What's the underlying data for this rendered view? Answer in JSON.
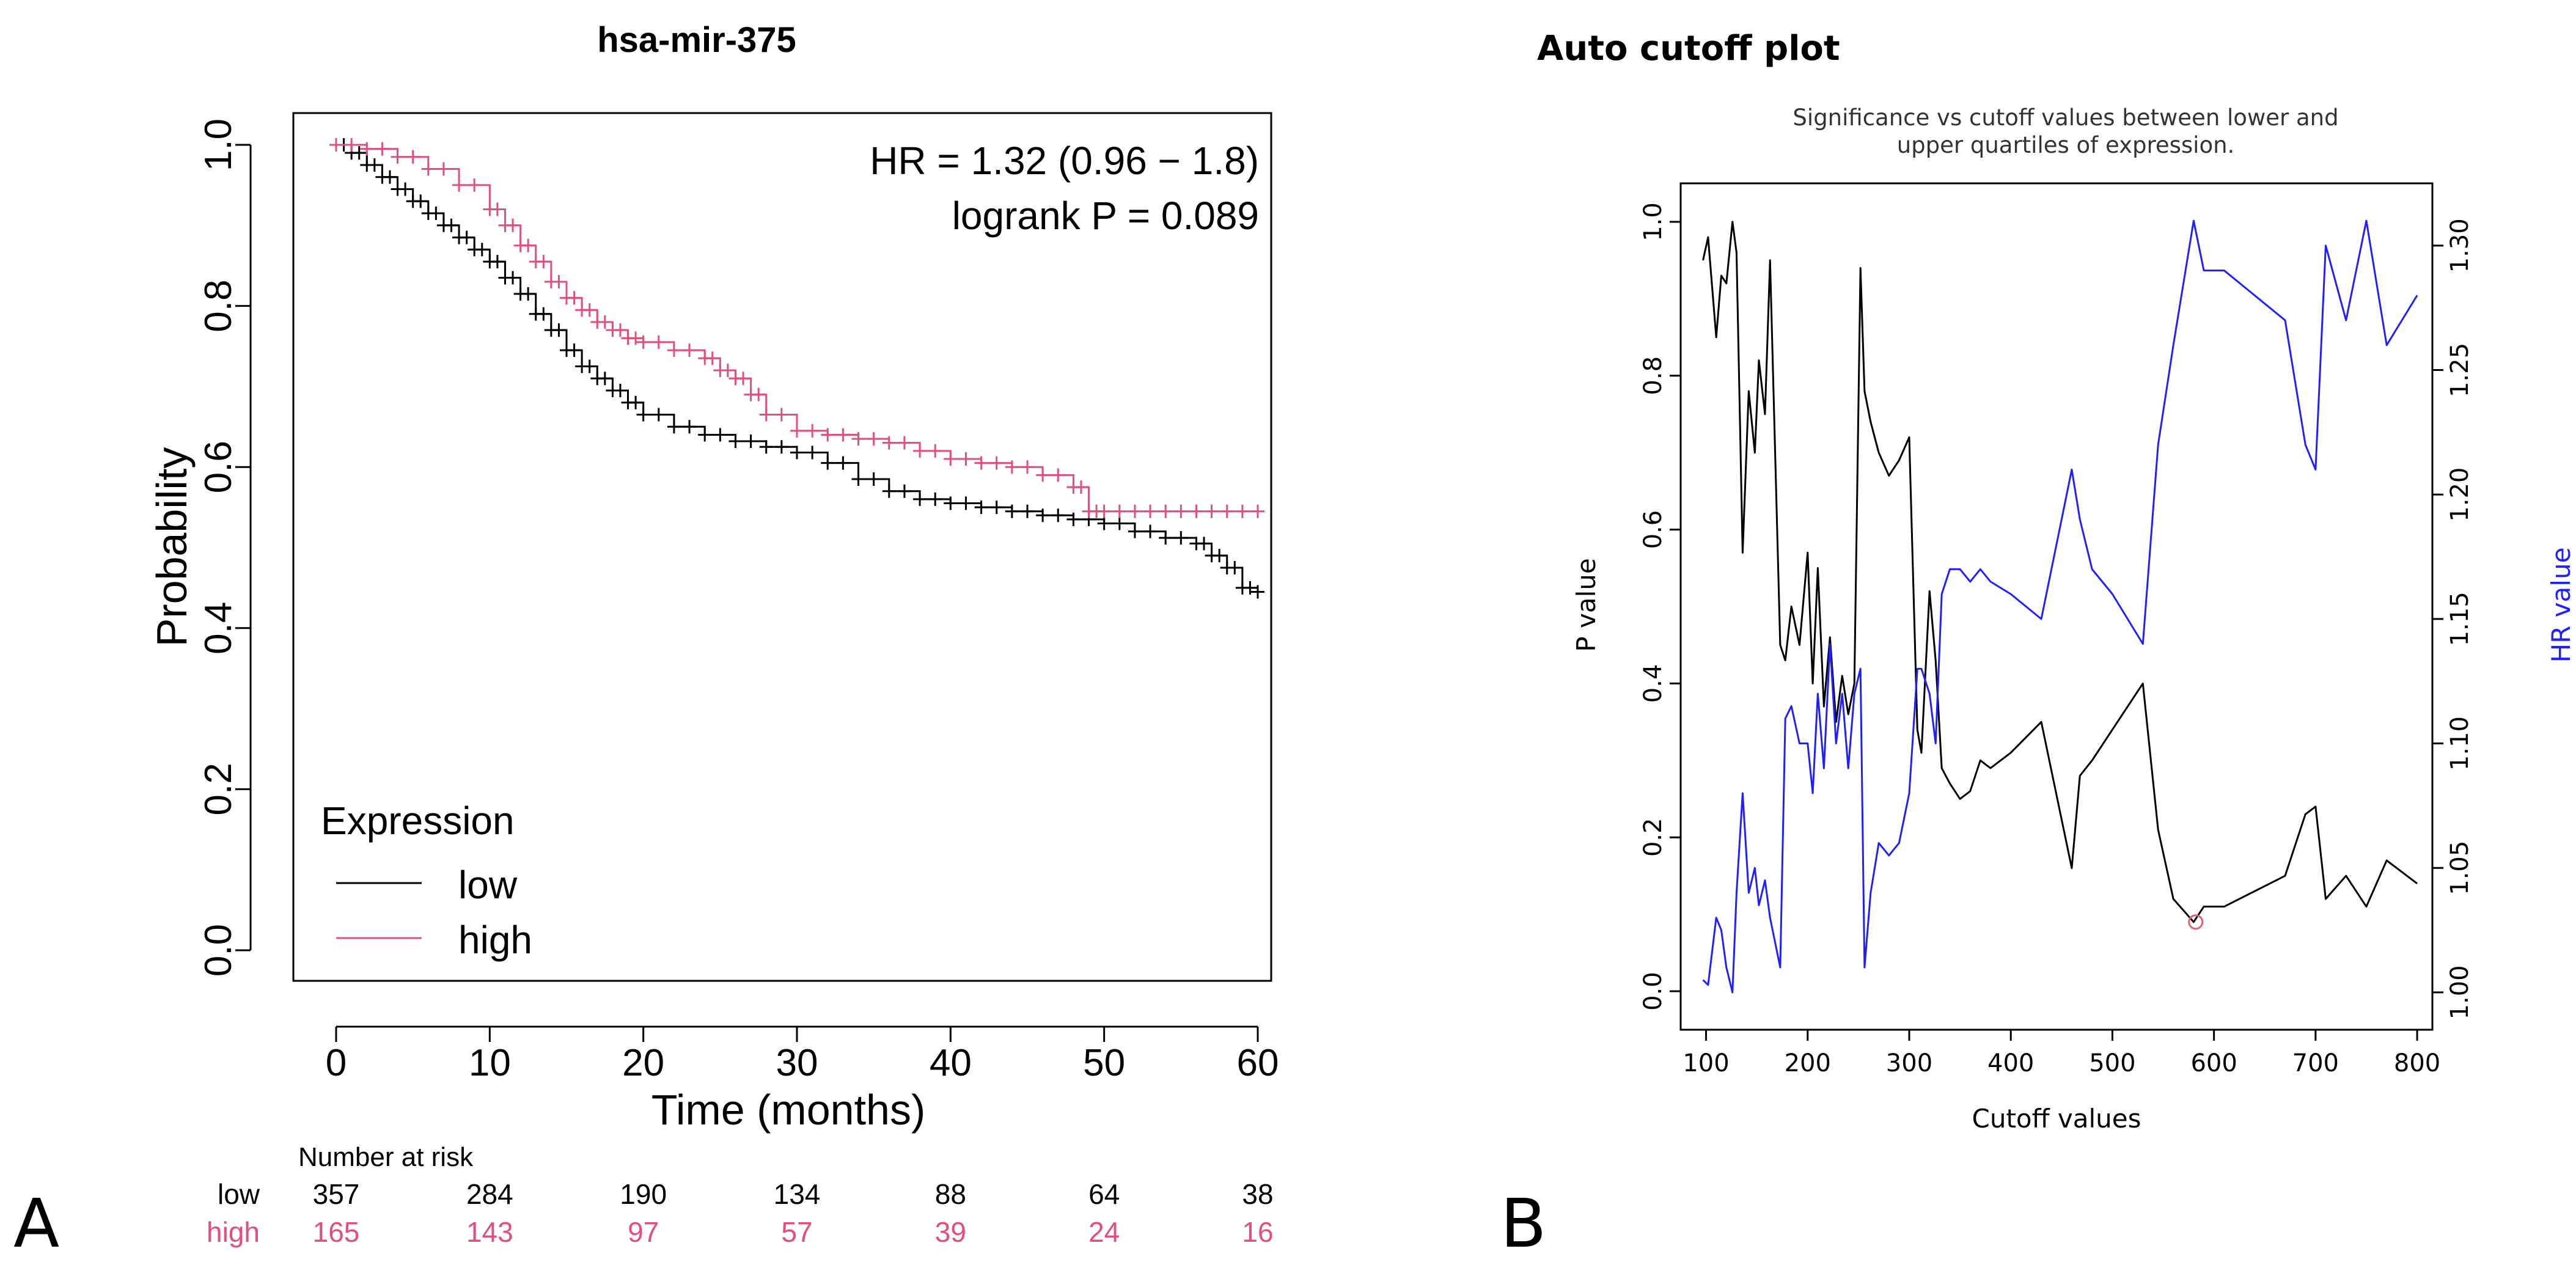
{
  "panel_labels": {
    "a": "A",
    "b": "B"
  },
  "colors": {
    "low": "#000000",
    "high": "#e0507a",
    "hr": "#2020ff",
    "opt": "#e06070"
  },
  "risk_table": {
    "title": "Number at risk",
    "rows": [
      {
        "label": "low",
        "values": [
          "357",
          "284",
          "190",
          "134",
          "88",
          "64",
          "38"
        ]
      },
      {
        "label": "high",
        "values": [
          "165",
          "143",
          "97",
          "57",
          "39",
          "24",
          "16"
        ]
      }
    ]
  },
  "chart_data": [
    {
      "type": "line",
      "subtype": "kaplan-meier",
      "title": "hsa-mir-375",
      "xlabel": "Time (months)",
      "ylabel": "Probability",
      "xlim": [
        0,
        60
      ],
      "ylim": [
        0,
        1
      ],
      "xticks": [
        0,
        10,
        20,
        30,
        40,
        50,
        60
      ],
      "yticks": [
        0.0,
        0.2,
        0.4,
        0.6,
        0.8,
        1.0
      ],
      "legend_title": "Expression",
      "legend_position": "bottom-left",
      "annotations": [
        "HR = 1.32 (0.96 − 1.8)",
        "logrank P = 0.089"
      ],
      "series": [
        {
          "name": "low",
          "color": "#000000",
          "x": [
            0,
            1,
            2,
            3,
            4,
            5,
            6,
            7,
            8,
            9,
            10,
            11,
            12,
            13,
            14,
            15,
            16,
            17,
            18,
            19,
            20,
            22,
            24,
            26,
            28,
            30,
            32,
            34,
            36,
            38,
            40,
            42,
            44,
            46,
            48,
            50,
            52,
            54,
            56,
            57,
            58,
            59,
            60
          ],
          "y": [
            1.0,
            0.99,
            0.975,
            0.96,
            0.945,
            0.93,
            0.915,
            0.9,
            0.885,
            0.87,
            0.855,
            0.835,
            0.815,
            0.79,
            0.77,
            0.745,
            0.725,
            0.71,
            0.695,
            0.68,
            0.665,
            0.65,
            0.64,
            0.632,
            0.625,
            0.618,
            0.605,
            0.585,
            0.57,
            0.56,
            0.555,
            0.55,
            0.545,
            0.54,
            0.535,
            0.53,
            0.52,
            0.512,
            0.505,
            0.49,
            0.475,
            0.45,
            0.445
          ]
        },
        {
          "name": "high",
          "color": "#e0507a",
          "x": [
            0,
            2,
            4,
            6,
            8,
            10,
            11,
            12,
            13,
            14,
            15,
            16,
            17,
            18,
            19,
            20,
            22,
            24,
            25,
            26,
            27,
            28,
            30,
            32,
            34,
            36,
            38,
            40,
            42,
            44,
            46,
            48,
            49,
            50,
            52,
            54,
            56,
            58,
            60
          ],
          "y": [
            1.0,
            0.995,
            0.985,
            0.97,
            0.95,
            0.92,
            0.9,
            0.875,
            0.855,
            0.83,
            0.81,
            0.795,
            0.78,
            0.77,
            0.76,
            0.755,
            0.745,
            0.735,
            0.72,
            0.71,
            0.69,
            0.665,
            0.645,
            0.64,
            0.635,
            0.63,
            0.62,
            0.61,
            0.605,
            0.6,
            0.59,
            0.575,
            0.545,
            0.545,
            0.545,
            0.545,
            0.545,
            0.545,
            0.545
          ]
        }
      ]
    },
    {
      "type": "line",
      "title": "Auto cutoff plot",
      "subtitle_lines": [
        "Significance vs cutoff values between lower and",
        "upper quartiles of expression."
      ],
      "xlabel": "Cutoff values",
      "ylabel": "P value",
      "y2label": "HR value",
      "xlim": [
        75,
        815
      ],
      "ylim": [
        -0.05,
        1.05
      ],
      "y2lim": [
        0.985,
        1.325
      ],
      "xticks": [
        100,
        200,
        300,
        400,
        500,
        600,
        700,
        800
      ],
      "yticks": [
        0.0,
        0.2,
        0.4,
        0.6,
        0.8,
        1.0
      ],
      "y2ticks": [
        1.0,
        1.05,
        1.1,
        1.15,
        1.2,
        1.25,
        1.3
      ],
      "optimal_cutoff": {
        "x": 582,
        "y": 0.09
      },
      "series": [
        {
          "name": "P value",
          "axis": "left",
          "color": "#000000",
          "x": [
            97,
            102,
            110,
            115,
            120,
            126,
            130,
            136,
            142,
            148,
            152,
            158,
            163,
            168,
            173,
            178,
            184,
            192,
            200,
            205,
            210,
            216,
            222,
            228,
            234,
            240,
            246,
            252,
            256,
            262,
            270,
            280,
            290,
            300,
            308,
            312,
            320,
            326,
            332,
            340,
            350,
            360,
            370,
            380,
            400,
            430,
            460,
            468,
            480,
            500,
            530,
            545,
            560,
            580,
            590,
            610,
            640,
            670,
            690,
            700,
            710,
            730,
            750,
            770,
            800
          ],
          "y": [
            0.95,
            0.98,
            0.85,
            0.93,
            0.92,
            1.0,
            0.96,
            0.57,
            0.78,
            0.7,
            0.82,
            0.75,
            0.95,
            0.7,
            0.45,
            0.43,
            0.5,
            0.45,
            0.57,
            0.4,
            0.55,
            0.37,
            0.46,
            0.35,
            0.41,
            0.36,
            0.4,
            0.94,
            0.78,
            0.74,
            0.7,
            0.67,
            0.69,
            0.72,
            0.34,
            0.31,
            0.52,
            0.43,
            0.29,
            0.27,
            0.25,
            0.26,
            0.3,
            0.29,
            0.31,
            0.35,
            0.16,
            0.28,
            0.3,
            0.34,
            0.4,
            0.21,
            0.12,
            0.09,
            0.11,
            0.11,
            0.13,
            0.15,
            0.23,
            0.24,
            0.12,
            0.15,
            0.11,
            0.17,
            0.14
          ]
        },
        {
          "name": "HR value",
          "axis": "right",
          "color": "#2020ff",
          "x": [
            97,
            102,
            110,
            115,
            120,
            126,
            130,
            136,
            142,
            148,
            152,
            158,
            163,
            168,
            173,
            178,
            184,
            192,
            200,
            205,
            210,
            216,
            222,
            228,
            234,
            240,
            246,
            252,
            256,
            262,
            270,
            280,
            290,
            300,
            308,
            312,
            320,
            326,
            332,
            340,
            350,
            360,
            370,
            380,
            400,
            430,
            460,
            468,
            480,
            500,
            530,
            545,
            560,
            580,
            590,
            610,
            640,
            670,
            690,
            700,
            710,
            730,
            750,
            770,
            800
          ],
          "y": [
            1.005,
            1.003,
            1.03,
            1.025,
            1.01,
            1.0,
            1.04,
            1.08,
            1.04,
            1.05,
            1.035,
            1.045,
            1.03,
            1.02,
            1.01,
            1.11,
            1.115,
            1.1,
            1.1,
            1.08,
            1.12,
            1.09,
            1.14,
            1.1,
            1.12,
            1.09,
            1.12,
            1.13,
            1.01,
            1.04,
            1.06,
            1.055,
            1.06,
            1.08,
            1.13,
            1.13,
            1.12,
            1.1,
            1.16,
            1.17,
            1.17,
            1.165,
            1.17,
            1.165,
            1.16,
            1.15,
            1.21,
            1.19,
            1.17,
            1.16,
            1.14,
            1.22,
            1.26,
            1.31,
            1.29,
            1.29,
            1.28,
            1.27,
            1.22,
            1.21,
            1.3,
            1.27,
            1.31,
            1.26,
            1.28
          ]
        }
      ]
    }
  ]
}
